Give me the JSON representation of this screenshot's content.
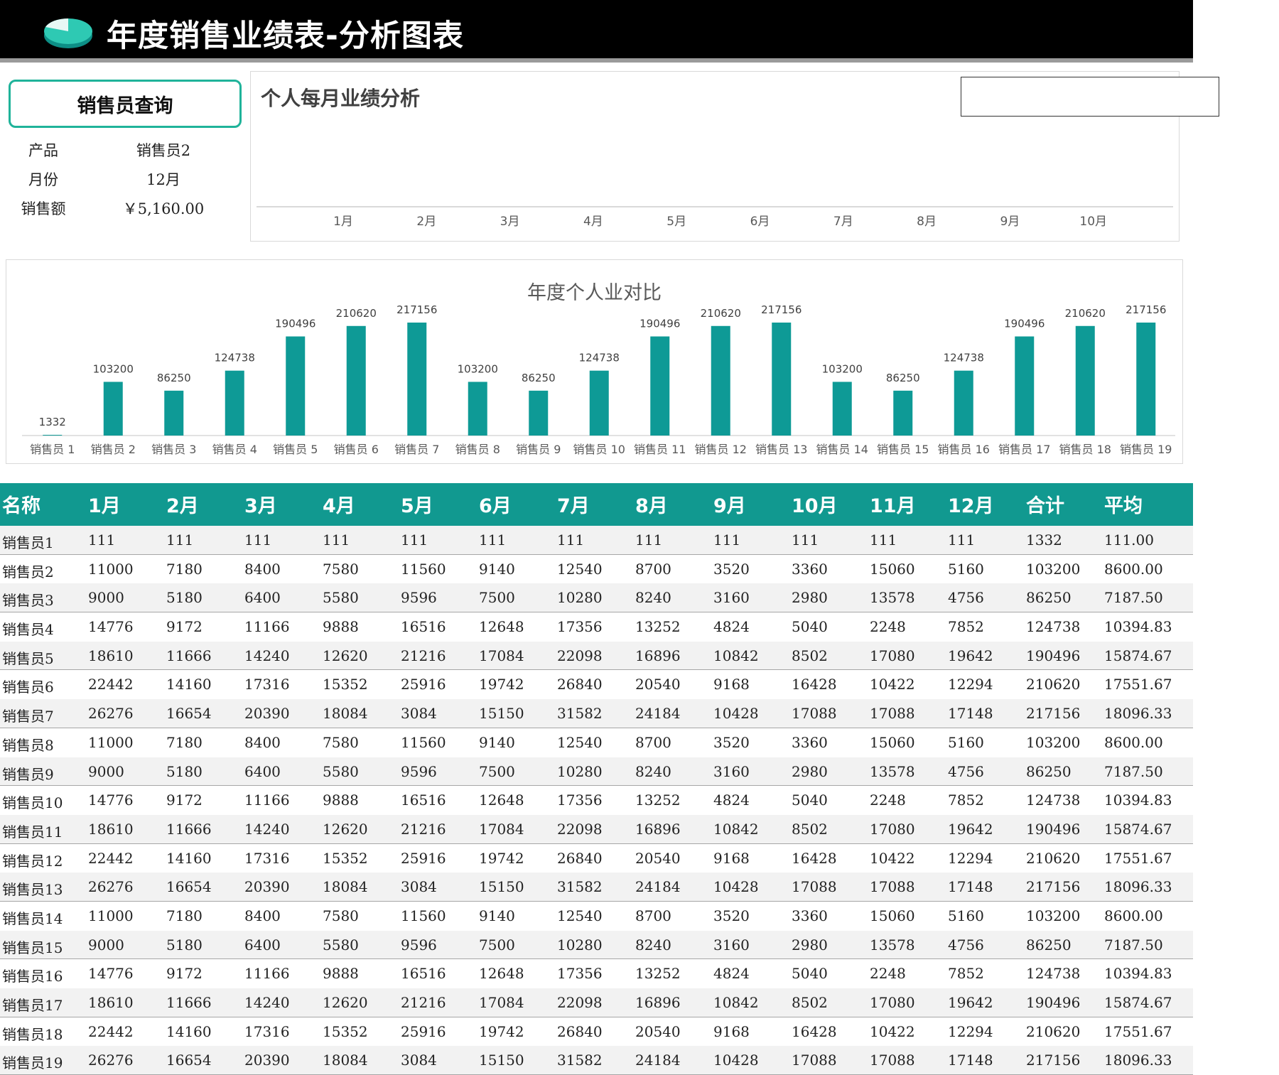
{
  "title": "年度销售业绩表-分析图表",
  "query": {
    "title": "销售员查询",
    "rows": [
      {
        "label": "产品",
        "value": "销售员2"
      },
      {
        "label": "月份",
        "value": "12月"
      },
      {
        "label": "销售额",
        "value": "￥5,160.00"
      }
    ]
  },
  "colors": {
    "accent": "#119990",
    "bar": "#0e9a96",
    "header_text": "#ffffff"
  },
  "chart_data": [
    {
      "type": "line",
      "title": "个人每月业绩分析",
      "categories": [
        "1月",
        "2月",
        "3月",
        "4月",
        "5月",
        "6月",
        "7月",
        "8月",
        "9月",
        "10月"
      ],
      "series": [],
      "grid": false
    },
    {
      "type": "bar",
      "title": "年度个人业对比",
      "categories": [
        "销售员 1",
        "销售员 2",
        "销售员 3",
        "销售员 4",
        "销售员 5",
        "销售员 6",
        "销售员 7",
        "销售员 8",
        "销售员 9",
        "销售员 10",
        "销售员 11",
        "销售员 12",
        "销售员 13",
        "销售员 14",
        "销售员 15",
        "销售员 16",
        "销售员 17",
        "销售员 18",
        "销售员 19"
      ],
      "values": [
        1332,
        103200,
        86250,
        124738,
        190496,
        210620,
        217156,
        103200,
        86250,
        124738,
        190496,
        210620,
        217156,
        103200,
        86250,
        124738,
        190496,
        210620,
        217156
      ],
      "ylim": [
        0,
        217156
      ],
      "grid": false
    }
  ],
  "table": {
    "headers": [
      "名称",
      "1月",
      "2月",
      "3月",
      "4月",
      "5月",
      "6月",
      "7月",
      "8月",
      "9月",
      "10月",
      "11月",
      "12月",
      "合计",
      "平均"
    ],
    "rows": [
      [
        "销售员1",
        "111",
        "111",
        "111",
        "111",
        "111",
        "111",
        "111",
        "111",
        "111",
        "111",
        "111",
        "111",
        "1332",
        "111.00"
      ],
      [
        "销售员2",
        "11000",
        "7180",
        "8400",
        "7580",
        "11560",
        "9140",
        "12540",
        "8700",
        "3520",
        "3360",
        "15060",
        "5160",
        "103200",
        "8600.00"
      ],
      [
        "销售员3",
        "9000",
        "5180",
        "6400",
        "5580",
        "9596",
        "7500",
        "10280",
        "8240",
        "3160",
        "2980",
        "13578",
        "4756",
        "86250",
        "7187.50"
      ],
      [
        "销售员4",
        "14776",
        "9172",
        "11166",
        "9888",
        "16516",
        "12648",
        "17356",
        "13252",
        "4824",
        "5040",
        "2248",
        "7852",
        "124738",
        "10394.83"
      ],
      [
        "销售员5",
        "18610",
        "11666",
        "14240",
        "12620",
        "21216",
        "17084",
        "22098",
        "16896",
        "10842",
        "8502",
        "17080",
        "19642",
        "190496",
        "15874.67"
      ],
      [
        "销售员6",
        "22442",
        "14160",
        "17316",
        "15352",
        "25916",
        "19742",
        "26840",
        "20540",
        "9168",
        "16428",
        "10422",
        "12294",
        "210620",
        "17551.67"
      ],
      [
        "销售员7",
        "26276",
        "16654",
        "20390",
        "18084",
        "3084",
        "15150",
        "31582",
        "24184",
        "10428",
        "17088",
        "17088",
        "17148",
        "217156",
        "18096.33"
      ],
      [
        "销售员8",
        "11000",
        "7180",
        "8400",
        "7580",
        "11560",
        "9140",
        "12540",
        "8700",
        "3520",
        "3360",
        "15060",
        "5160",
        "103200",
        "8600.00"
      ],
      [
        "销售员9",
        "9000",
        "5180",
        "6400",
        "5580",
        "9596",
        "7500",
        "10280",
        "8240",
        "3160",
        "2980",
        "13578",
        "4756",
        "86250",
        "7187.50"
      ],
      [
        "销售员10",
        "14776",
        "9172",
        "11166",
        "9888",
        "16516",
        "12648",
        "17356",
        "13252",
        "4824",
        "5040",
        "2248",
        "7852",
        "124738",
        "10394.83"
      ],
      [
        "销售员11",
        "18610",
        "11666",
        "14240",
        "12620",
        "21216",
        "17084",
        "22098",
        "16896",
        "10842",
        "8502",
        "17080",
        "19642",
        "190496",
        "15874.67"
      ],
      [
        "销售员12",
        "22442",
        "14160",
        "17316",
        "15352",
        "25916",
        "19742",
        "26840",
        "20540",
        "9168",
        "16428",
        "10422",
        "12294",
        "210620",
        "17551.67"
      ],
      [
        "销售员13",
        "26276",
        "16654",
        "20390",
        "18084",
        "3084",
        "15150",
        "31582",
        "24184",
        "10428",
        "17088",
        "17088",
        "17148",
        "217156",
        "18096.33"
      ],
      [
        "销售员14",
        "11000",
        "7180",
        "8400",
        "7580",
        "11560",
        "9140",
        "12540",
        "8700",
        "3520",
        "3360",
        "15060",
        "5160",
        "103200",
        "8600.00"
      ],
      [
        "销售员15",
        "9000",
        "5180",
        "6400",
        "5580",
        "9596",
        "7500",
        "10280",
        "8240",
        "3160",
        "2980",
        "13578",
        "4756",
        "86250",
        "7187.50"
      ],
      [
        "销售员16",
        "14776",
        "9172",
        "11166",
        "9888",
        "16516",
        "12648",
        "17356",
        "13252",
        "4824",
        "5040",
        "2248",
        "7852",
        "124738",
        "10394.83"
      ],
      [
        "销售员17",
        "18610",
        "11666",
        "14240",
        "12620",
        "21216",
        "17084",
        "22098",
        "16896",
        "10842",
        "8502",
        "17080",
        "19642",
        "190496",
        "15874.67"
      ],
      [
        "销售员18",
        "22442",
        "14160",
        "17316",
        "15352",
        "25916",
        "19742",
        "26840",
        "20540",
        "9168",
        "16428",
        "10422",
        "12294",
        "210620",
        "17551.67"
      ],
      [
        "销售员19",
        "26276",
        "16654",
        "20390",
        "18084",
        "3084",
        "15150",
        "31582",
        "24184",
        "10428",
        "17088",
        "17088",
        "17148",
        "217156",
        "18096.33"
      ]
    ]
  }
}
